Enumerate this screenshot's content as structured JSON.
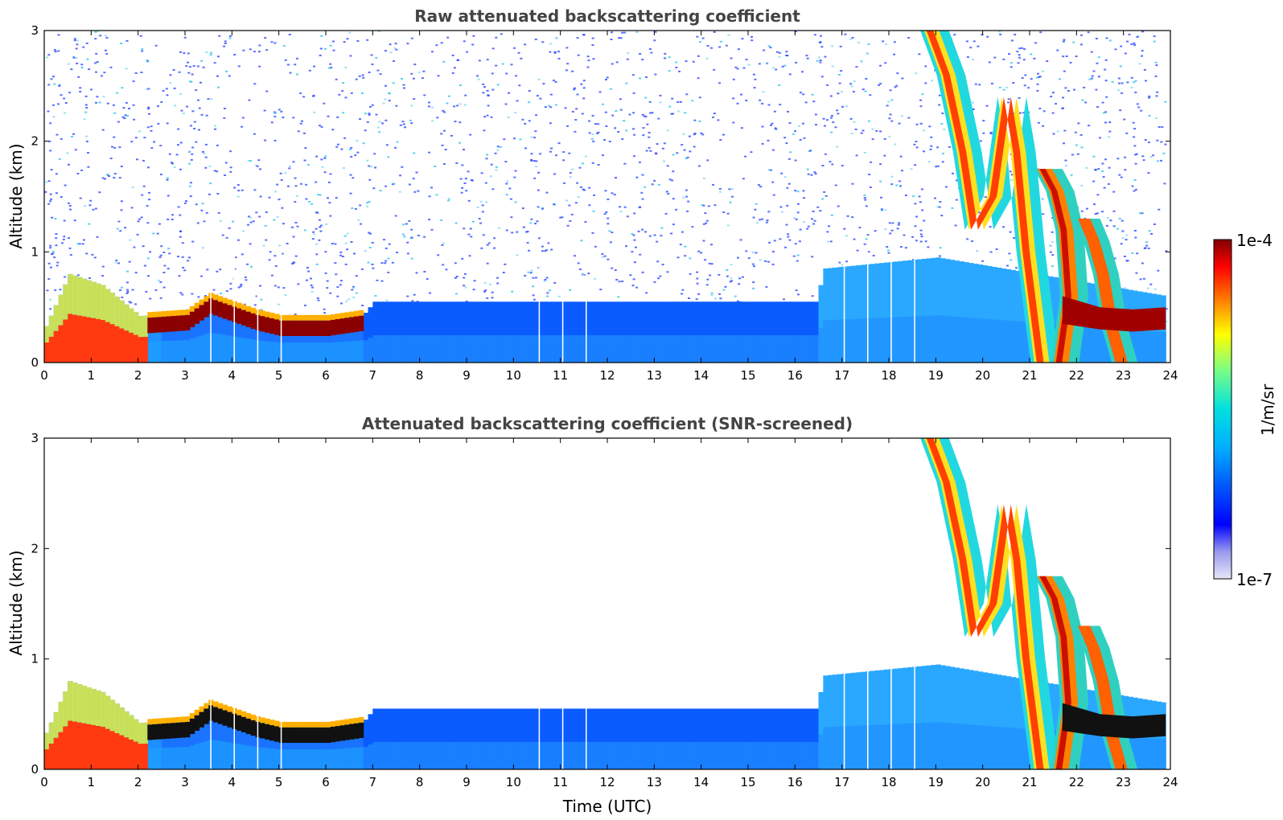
{
  "chart_data": [
    {
      "type": "heatmap",
      "title": "Raw attenuated backscattering coefficient",
      "xlabel": "",
      "ylabel": "Altitude (km)",
      "xlim": [
        0,
        24
      ],
      "ylim": [
        0,
        3
      ],
      "xticks": [
        "0",
        "1",
        "2",
        "3",
        "4",
        "5",
        "6",
        "7",
        "8",
        "9",
        "10",
        "11",
        "12",
        "13",
        "14",
        "15",
        "16",
        "17",
        "18",
        "19",
        "20",
        "21",
        "22",
        "23",
        "24"
      ],
      "yticks": [
        "0",
        "1",
        "2",
        "3"
      ],
      "colormap": "jet",
      "features": {
        "boundary_layer_top_km": [
          {
            "t": 0,
            "z": 0.33
          },
          {
            "t": 0.5,
            "z": 0.8
          },
          {
            "t": 1.2,
            "z": 0.7
          },
          {
            "t": 2,
            "z": 0.42
          },
          {
            "t": 3,
            "z": 0.45
          },
          {
            "t": 3.5,
            "z": 0.6
          },
          {
            "t": 4.5,
            "z": 0.45
          },
          {
            "t": 5,
            "z": 0.4
          },
          {
            "t": 6,
            "z": 0.4
          },
          {
            "t": 6.8,
            "z": 0.45
          },
          {
            "t": 7,
            "z": 0.55
          },
          {
            "t": 16.4,
            "z": 0.55
          },
          {
            "t": 16.6,
            "z": 0.85
          },
          {
            "t": 19,
            "z": 0.95
          },
          {
            "t": 23.9,
            "z": 0.6
          }
        ],
        "dense_layer_hours": [
          0,
          6.8
        ],
        "precipitation_streaks_hours": [
          18.8,
          23.0
        ]
      }
    },
    {
      "type": "heatmap",
      "title": "Attenuated backscattering coefficient (SNR-screened)",
      "xlabel": "Time (UTC)",
      "ylabel": "Altitude (km)",
      "xlim": [
        0,
        24
      ],
      "ylim": [
        0,
        3
      ],
      "xticks": [
        "0",
        "1",
        "2",
        "3",
        "4",
        "5",
        "6",
        "7",
        "8",
        "9",
        "10",
        "11",
        "12",
        "13",
        "14",
        "15",
        "16",
        "17",
        "18",
        "19",
        "20",
        "21",
        "22",
        "23",
        "24"
      ],
      "yticks": [
        "0",
        "1",
        "2",
        "3"
      ],
      "colormap": "jet"
    }
  ],
  "colorbar": {
    "max_label": "1e-4",
    "min_label": "1e-7",
    "unit_label": "1/m/sr",
    "scale": "log"
  }
}
